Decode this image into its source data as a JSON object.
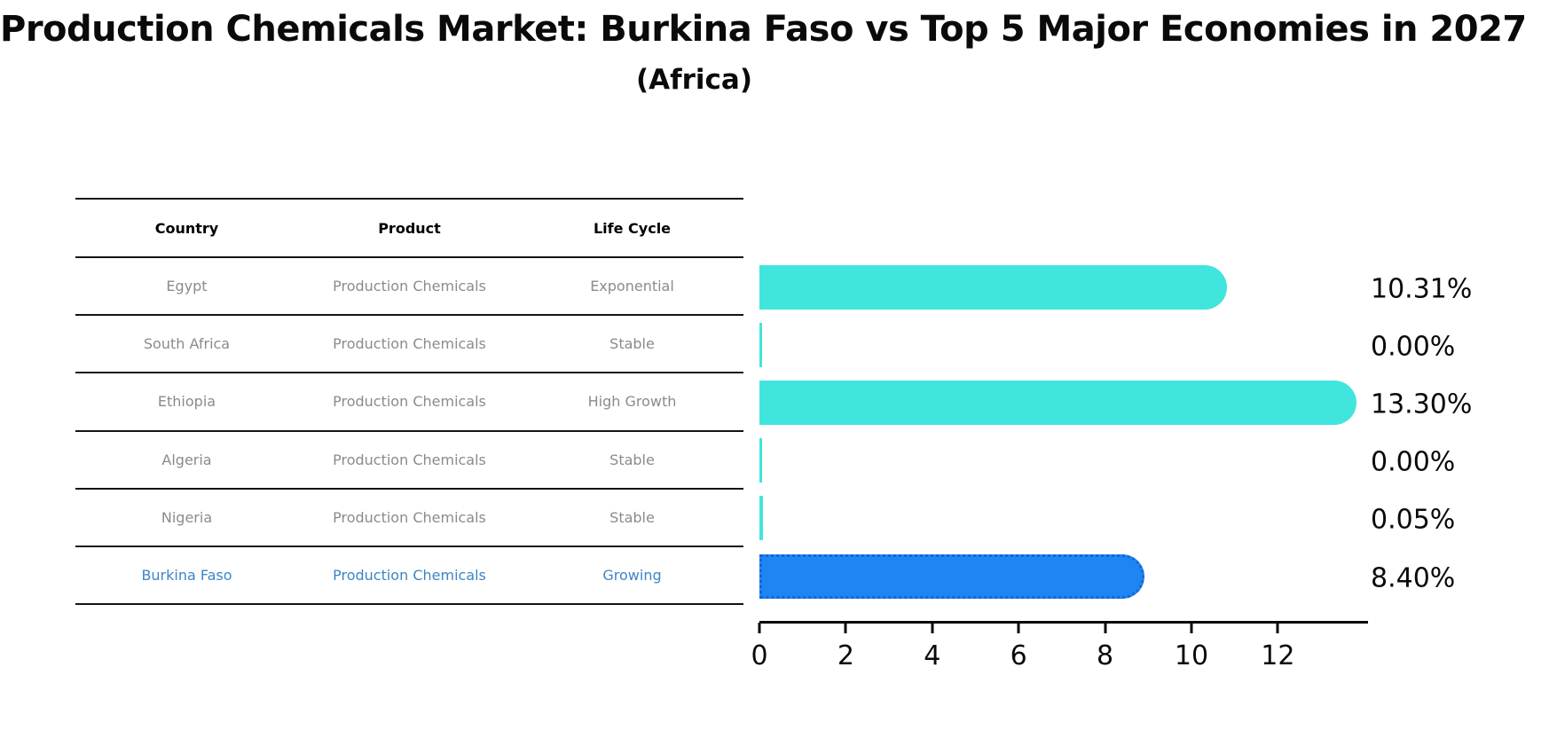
{
  "title": "Production Chemicals Market: Burkina Faso vs Top 5 Major Economies in 2027",
  "subtitle": "(Africa)",
  "table": {
    "headers": [
      "Country",
      "Product",
      "Life Cycle"
    ],
    "rows": [
      {
        "country": "Egypt",
        "product": "Production Chemicals",
        "life_cycle": "Exponential"
      },
      {
        "country": "South Africa",
        "product": "Production Chemicals",
        "life_cycle": "Stable"
      },
      {
        "country": "Ethiopia",
        "product": "Production Chemicals",
        "life_cycle": "High Growth"
      },
      {
        "country": "Algeria",
        "product": "Production Chemicals",
        "life_cycle": "Stable"
      },
      {
        "country": "Nigeria",
        "product": "Production Chemicals",
        "life_cycle": "Stable"
      },
      {
        "country": "Burkina Faso",
        "product": "Production Chemicals",
        "life_cycle": "Growing"
      }
    ]
  },
  "chart_data": {
    "type": "bar",
    "orientation": "horizontal",
    "categories": [
      "Egypt",
      "South Africa",
      "Ethiopia",
      "Algeria",
      "Nigeria",
      "Burkina Faso"
    ],
    "values": [
      10.31,
      0.0,
      13.3,
      0.0,
      0.05,
      8.4
    ],
    "value_labels": [
      "10.31%",
      "0.00%",
      "13.30%",
      "0.00%",
      "0.05%",
      "8.40%"
    ],
    "x_ticks": [
      0,
      2,
      4,
      6,
      8,
      10,
      12
    ],
    "xlim": [
      0,
      14.1
    ],
    "grid": false,
    "legend": false,
    "bar_color": "#40E5DE",
    "highlight_index": 5,
    "highlight_color": "#1E86F2",
    "highlight_border_color": "#1565D8",
    "highlight_text_color": "#3D85C6"
  }
}
